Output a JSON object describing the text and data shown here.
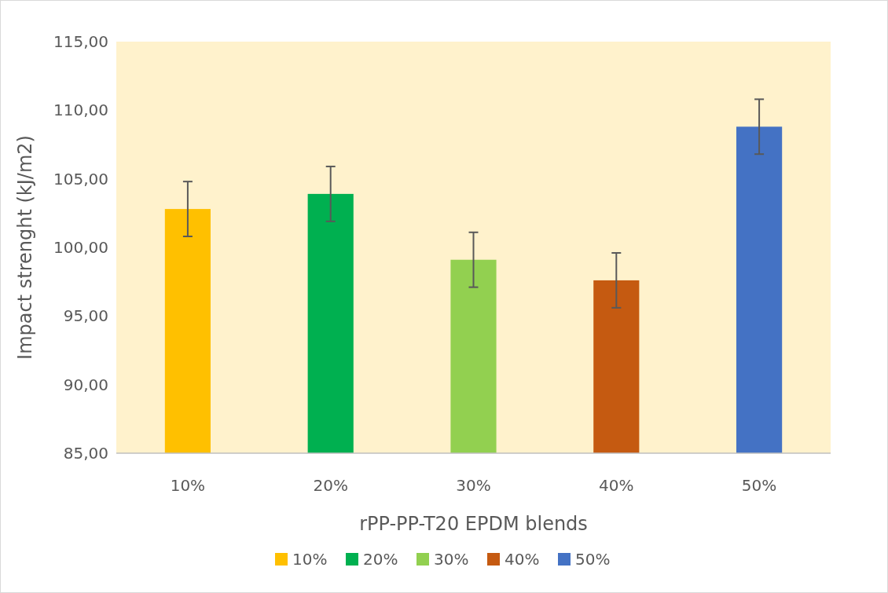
{
  "chart_data": {
    "type": "bar",
    "xlabel": "rPP-PP-T20 EPDM blends",
    "ylabel": "Impact strenght (kJ/m2)",
    "categories": [
      "10%",
      "20%",
      "30%",
      "40%",
      "50%"
    ],
    "series": [
      {
        "name": "10%",
        "color": "#ffc000",
        "values": [
          102.8,
          null,
          null,
          null,
          null
        ],
        "errors": [
          2,
          null,
          null,
          null,
          null
        ]
      },
      {
        "name": "20%",
        "color": "#00b050",
        "values": [
          null,
          103.9,
          null,
          null,
          null
        ],
        "errors": [
          null,
          2,
          null,
          null,
          null
        ]
      },
      {
        "name": "30%",
        "color": "#92d050",
        "values": [
          null,
          null,
          99.1,
          null,
          null
        ],
        "errors": [
          null,
          null,
          2,
          null,
          null
        ]
      },
      {
        "name": "40%",
        "color": "#c55a11",
        "values": [
          null,
          null,
          null,
          97.6,
          null
        ],
        "errors": [
          null,
          null,
          null,
          2,
          null
        ]
      },
      {
        "name": "50%",
        "color": "#4472c4",
        "values": [
          null,
          null,
          null,
          null,
          108.8
        ],
        "errors": [
          null,
          null,
          null,
          null,
          2
        ]
      }
    ],
    "ylim": [
      85,
      115
    ],
    "yticks": [
      {
        "value": 85,
        "label": "85,00"
      },
      {
        "value": 90,
        "label": "90,00"
      },
      {
        "value": 95,
        "label": "95,00"
      },
      {
        "value": 100,
        "label": "100,00"
      },
      {
        "value": 105,
        "label": "105,00"
      },
      {
        "value": 110,
        "label": "110,00"
      },
      {
        "value": 115,
        "label": "115,00"
      }
    ],
    "legend": "bottom"
  }
}
